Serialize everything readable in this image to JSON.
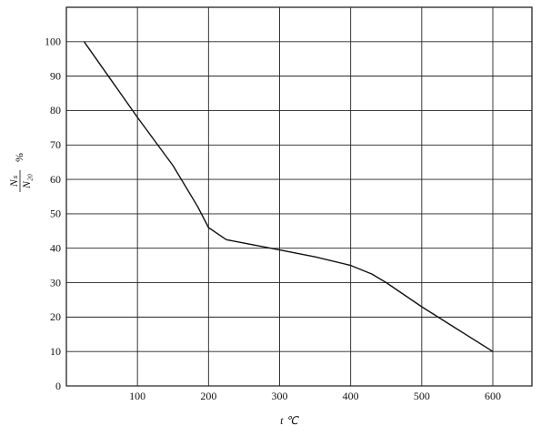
{
  "chart_data": {
    "type": "line",
    "xlabel": "t ℃",
    "ylabel_numerator": "Nₛ",
    "ylabel_denominator": "N₂₀",
    "ylabel_unit": "%",
    "x": [
      25,
      100,
      150,
      185,
      200,
      225,
      250,
      300,
      350,
      400,
      430,
      450,
      500,
      550,
      600
    ],
    "series": [
      {
        "color": "#111111",
        "values": [
          100,
          78,
          64,
          52,
          46,
          42.5,
          41.5,
          39.5,
          37.5,
          35,
          32.5,
          30,
          23,
          16.5,
          10
        ]
      }
    ],
    "xlim": [
      0,
      655
    ],
    "ylim": [
      0,
      110
    ],
    "xticks": [
      100,
      200,
      300,
      400,
      500,
      600
    ],
    "yticks": [
      0,
      10,
      20,
      30,
      40,
      50,
      60,
      70,
      80,
      90,
      100
    ],
    "grid": true
  }
}
